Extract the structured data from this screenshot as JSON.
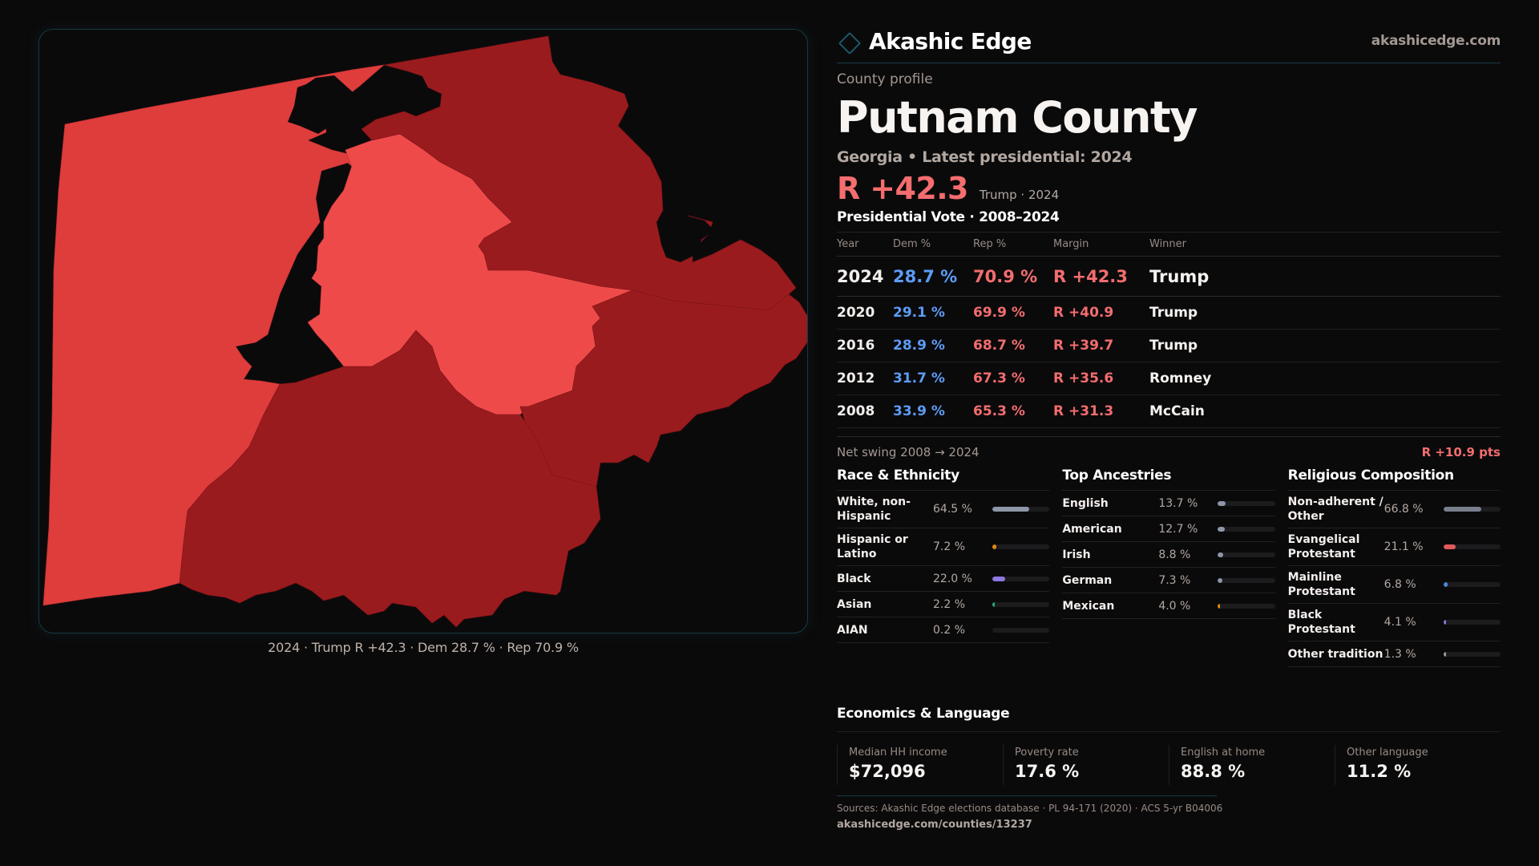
{
  "brand": {
    "name": "Akashic Edge",
    "site": "akashicedge.com",
    "logo_icon": "diamond-outline-icon",
    "accent": "#1a5866"
  },
  "profile": {
    "eyebrow": "County profile",
    "county": "Putnam County",
    "subtitle": "Georgia • Latest presidential: 2024",
    "headline_margin": "R +42.3",
    "headline_sub": "Trump · 2024"
  },
  "map": {
    "caption": "2024 · Trump R +42.3 · Dem 28.7 % · Rep 70.9 %",
    "colors": {
      "lean_r": "#df3c3c",
      "light_r": "#ef4a4a",
      "strong_r": "#9a1b1e",
      "no_data": "#0b0a0b"
    }
  },
  "votes": {
    "title": "Presidential Vote · 2008–2024",
    "headers": [
      "Year",
      "Dem %",
      "Rep %",
      "Margin",
      "Winner"
    ],
    "rows": [
      {
        "year": "2024",
        "dem": "28.7 %",
        "rep": "70.9 %",
        "margin": "R +42.3",
        "winner": "Trump"
      },
      {
        "year": "2020",
        "dem": "29.1 %",
        "rep": "69.9 %",
        "margin": "R +40.9",
        "winner": "Trump"
      },
      {
        "year": "2016",
        "dem": "28.9 %",
        "rep": "68.7 %",
        "margin": "R +39.7",
        "winner": "Trump"
      },
      {
        "year": "2012",
        "dem": "31.7 %",
        "rep": "67.3 %",
        "margin": "R +35.6",
        "winner": "Romney"
      },
      {
        "year": "2008",
        "dem": "33.9 %",
        "rep": "65.3 %",
        "margin": "R +31.3",
        "winner": "McCain"
      }
    ],
    "swing_label": "Net swing 2008 → 2024",
    "swing_value": "R +10.9 pts"
  },
  "race": {
    "title": "Race & Ethnicity",
    "items": [
      {
        "label": "White, non-Hispanic",
        "value": "64.5 %",
        "pct": 64.5,
        "color": "#8d97a8"
      },
      {
        "label": "Hispanic or Latino",
        "value": "7.2 %",
        "pct": 7.2,
        "color": "#e08a12"
      },
      {
        "label": "Black",
        "value": "22.0 %",
        "pct": 22.0,
        "color": "#8f78e0"
      },
      {
        "label": "Asian",
        "value": "2.2 %",
        "pct": 2.2,
        "color": "#22b07a"
      },
      {
        "label": "AIAN",
        "value": "0.2 %",
        "pct": 0.2,
        "color": "#c97b5a"
      }
    ]
  },
  "ancestry": {
    "title": "Top Ancestries",
    "items": [
      {
        "label": "English",
        "value": "13.7 %",
        "pct": 13.7,
        "color": "#8d97a8"
      },
      {
        "label": "American",
        "value": "12.7 %",
        "pct": 12.7,
        "color": "#8d97a8"
      },
      {
        "label": "Irish",
        "value": "8.8 %",
        "pct": 8.8,
        "color": "#8d97a8"
      },
      {
        "label": "German",
        "value": "7.3 %",
        "pct": 7.3,
        "color": "#8d97a8"
      },
      {
        "label": "Mexican",
        "value": "4.0 %",
        "pct": 4.0,
        "color": "#e08a12"
      }
    ]
  },
  "religion": {
    "title": "Religious Composition",
    "items": [
      {
        "label": "Non-adherent / Other",
        "value": "66.8 %",
        "pct": 66.8,
        "color": "#7a7f8e"
      },
      {
        "label": "Evangelical Protestant",
        "value": "21.1 %",
        "pct": 21.1,
        "color": "#e05a5c"
      },
      {
        "label": "Mainline Protestant",
        "value": "6.8 %",
        "pct": 6.8,
        "color": "#4a88e0"
      },
      {
        "label": "Black Protestant",
        "value": "4.1 %",
        "pct": 4.1,
        "color": "#8f78e0"
      },
      {
        "label": "Other tradition",
        "value": "1.3 %",
        "pct": 1.3,
        "color": "#9a9aa0"
      }
    ]
  },
  "economics": {
    "title": "Economics & Language",
    "cards": [
      {
        "label": "Median HH income",
        "value": "$72,096"
      },
      {
        "label": "Poverty rate",
        "value": "17.6 %"
      },
      {
        "label": "English at home",
        "value": "88.8 %"
      },
      {
        "label": "Other language",
        "value": "11.2 %"
      }
    ]
  },
  "footer": {
    "sources": "Sources: Akashic Edge elections database · PL 94-171 (2020) · ACS 5-yr B04006",
    "url": "akashicedge.com/counties/13237"
  }
}
